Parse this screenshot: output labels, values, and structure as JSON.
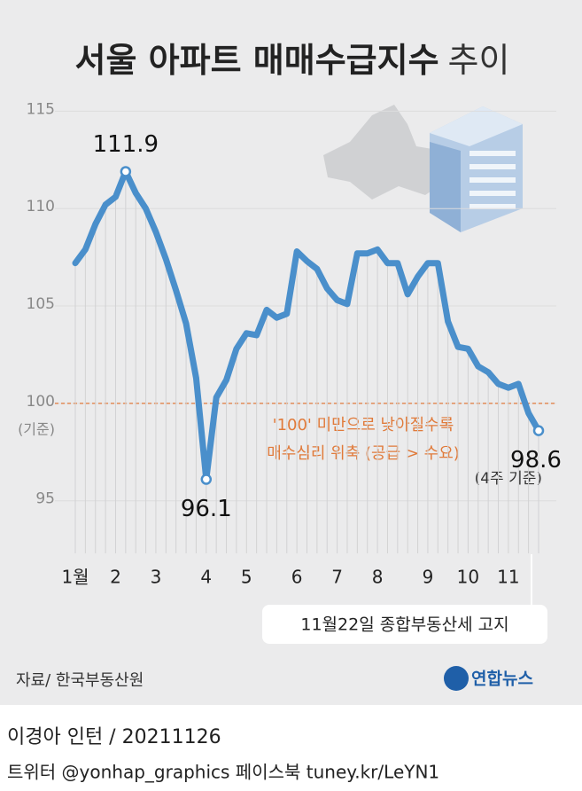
{
  "chart_data": {
    "type": "line",
    "title": "서울 아파트 매매수급지수",
    "title_suffix": "추이",
    "categories": [
      "1월",
      null,
      null,
      null,
      "2",
      null,
      null,
      null,
      "3",
      null,
      null,
      null,
      null,
      "4",
      null,
      null,
      null,
      "5",
      null,
      null,
      null,
      null,
      "6",
      null,
      null,
      null,
      "7",
      null,
      null,
      null,
      "8",
      null,
      null,
      null,
      null,
      "9",
      null,
      null,
      null,
      "10",
      null,
      null,
      null,
      "11",
      null,
      null,
      null
    ],
    "values": [
      107.2,
      107.9,
      109.2,
      110.2,
      110.6,
      111.9,
      110.8,
      110.0,
      108.8,
      107.4,
      105.8,
      104.1,
      101.3,
      96.1,
      100.3,
      101.2,
      102.8,
      103.6,
      103.5,
      104.8,
      104.4,
      104.6,
      107.8,
      107.3,
      106.9,
      105.9,
      105.3,
      105.1,
      107.7,
      107.7,
      107.9,
      107.2,
      107.2,
      105.6,
      106.5,
      107.2,
      107.2,
      104.2,
      102.9,
      102.8,
      101.9,
      101.6,
      101.0,
      100.8,
      101.0,
      99.5,
      98.6
    ],
    "value_labels": [
      null,
      null,
      null,
      null,
      null,
      "111.9",
      null,
      null,
      null,
      null,
      null,
      null,
      null,
      "96.1",
      null,
      null,
      null,
      null,
      null,
      null,
      null,
      null,
      null,
      null,
      null,
      null,
      null,
      null,
      null,
      null,
      null,
      null,
      null,
      null,
      null,
      null,
      null,
      null,
      null,
      null,
      null,
      null,
      null,
      null,
      null,
      null,
      "98.6"
    ],
    "end_note": "(4주 기준)",
    "color": "#4a8fcb",
    "ylim": [
      92.3,
      115.7
    ],
    "yticks": [
      95,
      100,
      105,
      110,
      115
    ],
    "grid": true,
    "reference": 100,
    "reference_label": "(기준)",
    "reference_color": "#e07a3a",
    "annotation": [
      "'100' 미만으로 낮아질수록",
      "매수심리 위축 (공급 > 수요)"
    ],
    "event_note": "11월22일 종합부동산세 고지",
    "source": "자료/ 한국부동산원",
    "logo": "연합뉴스",
    "byline": "이경아 인턴 / 20211126",
    "social": "트위터 @yonhap_graphics  페이스북 tuney.kr/LeYN1"
  }
}
